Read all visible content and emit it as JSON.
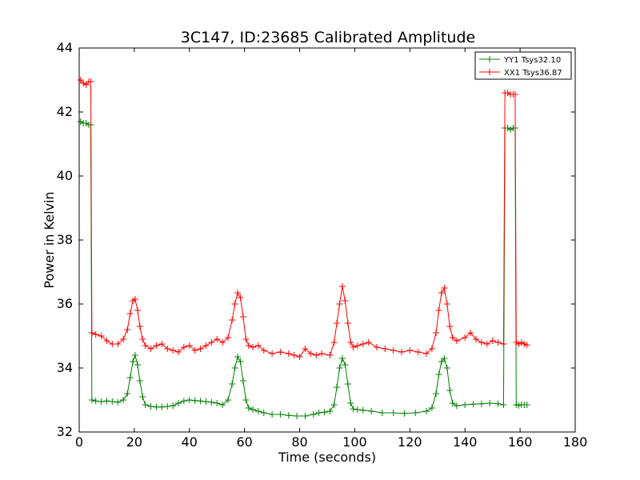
{
  "chart_data": {
    "type": "line",
    "title": "3C147, ID:23685 Calibrated Amplitude",
    "xlabel": "Time (seconds)",
    "ylabel": "Power in Kelvin",
    "xlim": [
      0,
      180
    ],
    "ylim": [
      32,
      44
    ],
    "xticks": [
      0,
      20,
      40,
      60,
      80,
      100,
      120,
      140,
      160,
      180
    ],
    "yticks": [
      32,
      34,
      36,
      38,
      40,
      42,
      44
    ],
    "grid": false,
    "legend_position": "top-right",
    "marker": "+",
    "series": [
      {
        "name": "YY1 Tsys32.10",
        "color": "#008000",
        "points": [
          [
            0.5,
            41.7
          ],
          [
            1.5,
            41.65
          ],
          [
            2.5,
            41.65
          ],
          [
            3.5,
            41.6
          ],
          [
            4.2,
            41.6
          ],
          [
            4.6,
            33.0
          ],
          [
            6,
            32.97
          ],
          [
            8,
            32.95
          ],
          [
            10,
            32.97
          ],
          [
            12,
            32.95
          ],
          [
            14,
            32.93
          ],
          [
            16,
            33.0
          ],
          [
            17.5,
            33.2
          ],
          [
            18.5,
            33.7
          ],
          [
            19.5,
            34.2
          ],
          [
            20.3,
            34.4
          ],
          [
            21.2,
            34.1
          ],
          [
            22,
            33.6
          ],
          [
            23,
            33.1
          ],
          [
            24,
            32.85
          ],
          [
            26,
            32.8
          ],
          [
            28,
            32.78
          ],
          [
            30,
            32.78
          ],
          [
            32,
            32.8
          ],
          [
            34,
            32.82
          ],
          [
            36,
            32.9
          ],
          [
            38,
            32.97
          ],
          [
            40,
            33.0
          ],
          [
            42,
            32.98
          ],
          [
            44,
            32.97
          ],
          [
            46,
            32.95
          ],
          [
            48,
            32.93
          ],
          [
            50,
            32.9
          ],
          [
            52,
            32.85
          ],
          [
            54,
            33.0
          ],
          [
            55.5,
            33.5
          ],
          [
            56.5,
            34.0
          ],
          [
            57.5,
            34.35
          ],
          [
            58.5,
            34.2
          ],
          [
            59.5,
            33.6
          ],
          [
            60.5,
            33.0
          ],
          [
            61.5,
            32.75
          ],
          [
            63,
            32.7
          ],
          [
            65,
            32.65
          ],
          [
            67,
            32.6
          ],
          [
            70,
            32.55
          ],
          [
            73,
            32.55
          ],
          [
            76,
            32.52
          ],
          [
            79,
            32.5
          ],
          [
            82,
            32.5
          ],
          [
            85,
            32.55
          ],
          [
            87,
            32.6
          ],
          [
            89,
            32.62
          ],
          [
            91,
            32.65
          ],
          [
            92.5,
            32.85
          ],
          [
            93.5,
            33.4
          ],
          [
            94.5,
            34.0
          ],
          [
            95.5,
            34.3
          ],
          [
            96.5,
            34.1
          ],
          [
            97.5,
            33.5
          ],
          [
            98.5,
            32.9
          ],
          [
            99.5,
            32.72
          ],
          [
            101,
            32.7
          ],
          [
            103,
            32.68
          ],
          [
            106,
            32.65
          ],
          [
            110,
            32.6
          ],
          [
            114,
            32.6
          ],
          [
            118,
            32.58
          ],
          [
            122,
            32.6
          ],
          [
            126,
            32.65
          ],
          [
            128,
            32.75
          ],
          [
            129.5,
            33.2
          ],
          [
            130.5,
            33.8
          ],
          [
            131.5,
            34.2
          ],
          [
            132.5,
            34.3
          ],
          [
            133.5,
            34.0
          ],
          [
            134.5,
            33.3
          ],
          [
            135.5,
            32.9
          ],
          [
            137,
            32.82
          ],
          [
            140,
            32.85
          ],
          [
            143,
            32.87
          ],
          [
            146,
            32.88
          ],
          [
            149,
            32.9
          ],
          [
            152,
            32.88
          ],
          [
            154,
            32.85
          ],
          [
            154.5,
            41.5
          ],
          [
            155.5,
            41.5
          ],
          [
            156.5,
            41.45
          ],
          [
            157.5,
            41.5
          ],
          [
            158.2,
            41.5
          ],
          [
            158.6,
            32.85
          ],
          [
            159.5,
            32.83
          ],
          [
            160.5,
            32.85
          ],
          [
            161.5,
            32.85
          ],
          [
            162.5,
            32.85
          ]
        ]
      },
      {
        "name": "XX1 Tsys36.87",
        "color": "#ff0000",
        "points": [
          [
            0.5,
            43.0
          ],
          [
            1.5,
            42.9
          ],
          [
            2.5,
            42.85
          ],
          [
            3.5,
            42.95
          ],
          [
            4.2,
            42.95
          ],
          [
            4.6,
            35.1
          ],
          [
            6,
            35.05
          ],
          [
            8,
            35.0
          ],
          [
            10,
            34.85
          ],
          [
            12,
            34.75
          ],
          [
            14,
            34.75
          ],
          [
            16,
            34.9
          ],
          [
            17.5,
            35.2
          ],
          [
            18.5,
            35.7
          ],
          [
            19.5,
            36.1
          ],
          [
            20.3,
            36.15
          ],
          [
            21.2,
            35.8
          ],
          [
            22,
            35.3
          ],
          [
            23,
            34.9
          ],
          [
            24,
            34.7
          ],
          [
            26,
            34.6
          ],
          [
            28,
            34.7
          ],
          [
            30,
            34.75
          ],
          [
            32,
            34.6
          ],
          [
            34,
            34.55
          ],
          [
            36,
            34.5
          ],
          [
            38,
            34.65
          ],
          [
            40,
            34.7
          ],
          [
            42,
            34.55
          ],
          [
            44,
            34.6
          ],
          [
            46,
            34.7
          ],
          [
            48,
            34.8
          ],
          [
            50,
            34.9
          ],
          [
            52,
            34.8
          ],
          [
            54,
            34.95
          ],
          [
            55.5,
            35.5
          ],
          [
            56.5,
            36.0
          ],
          [
            57.5,
            36.35
          ],
          [
            58.5,
            36.2
          ],
          [
            59.5,
            35.6
          ],
          [
            60.5,
            34.9
          ],
          [
            61.5,
            34.7
          ],
          [
            63,
            34.65
          ],
          [
            65,
            34.7
          ],
          [
            67,
            34.55
          ],
          [
            70,
            34.45
          ],
          [
            73,
            34.5
          ],
          [
            76,
            34.45
          ],
          [
            78,
            34.4
          ],
          [
            80,
            34.35
          ],
          [
            82,
            34.6
          ],
          [
            84,
            34.45
          ],
          [
            86,
            34.4
          ],
          [
            88,
            34.45
          ],
          [
            91,
            34.4
          ],
          [
            92.5,
            34.8
          ],
          [
            93.5,
            35.4
          ],
          [
            94.5,
            36.0
          ],
          [
            95.5,
            36.55
          ],
          [
            96.5,
            36.1
          ],
          [
            97.5,
            35.4
          ],
          [
            98.5,
            34.8
          ],
          [
            99.5,
            34.65
          ],
          [
            101,
            34.7
          ],
          [
            103,
            34.75
          ],
          [
            105,
            34.8
          ],
          [
            108,
            34.65
          ],
          [
            111,
            34.6
          ],
          [
            114,
            34.55
          ],
          [
            117,
            34.5
          ],
          [
            120,
            34.55
          ],
          [
            123,
            34.5
          ],
          [
            126,
            34.45
          ],
          [
            128,
            34.6
          ],
          [
            129.5,
            35.1
          ],
          [
            130.5,
            35.8
          ],
          [
            131.5,
            36.35
          ],
          [
            132.5,
            36.5
          ],
          [
            133.5,
            36.0
          ],
          [
            134.5,
            35.3
          ],
          [
            135.5,
            34.95
          ],
          [
            137,
            34.85
          ],
          [
            140,
            34.95
          ],
          [
            142,
            35.1
          ],
          [
            144,
            34.9
          ],
          [
            146,
            34.8
          ],
          [
            148,
            34.75
          ],
          [
            150,
            34.85
          ],
          [
            152,
            34.8
          ],
          [
            154,
            34.75
          ],
          [
            154.5,
            42.6
          ],
          [
            155.5,
            42.6
          ],
          [
            156.5,
            42.55
          ],
          [
            157.5,
            42.55
          ],
          [
            158.2,
            42.55
          ],
          [
            158.6,
            34.8
          ],
          [
            159.5,
            34.75
          ],
          [
            160.5,
            34.8
          ],
          [
            161.5,
            34.75
          ],
          [
            162.5,
            34.72
          ]
        ]
      }
    ]
  }
}
